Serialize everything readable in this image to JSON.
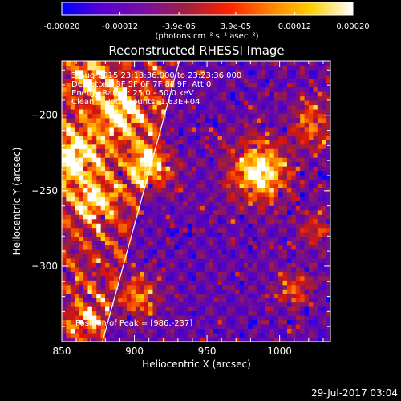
{
  "chart_data": {
    "type": "heatmap",
    "title": "Reconstructed RHESSI Image",
    "xlabel": "Heliocentric X (arcsec)",
    "ylabel": "Heliocentric Y (arcsec)",
    "xlim": [
      850,
      1035
    ],
    "ylim": [
      -350,
      -164
    ],
    "x_ticks": [
      850,
      900,
      950,
      1000
    ],
    "y_ticks": [
      -200,
      -250,
      -300
    ],
    "annotations": [
      "3-Aug-2015 23:13:36.000 to 23:23:36.000",
      "Detectors: 3F 5F 6F 7F 8F 9F, Att 0",
      "Energy Range: 25.0 - 50.0 keV",
      "Clean     Total counts: 1.63E+04"
    ],
    "peak_label": "Position of Peak = [986,-237]",
    "peak": [
      986,
      -237
    ],
    "colorbar": {
      "min": -0.0002,
      "max": 0.0002,
      "tick_values": [
        -0.0002,
        -0.00012,
        -3.9e-05,
        3.9e-05,
        0.00012,
        0.0002
      ],
      "tick_labels": [
        "-0.00020",
        "-0.00012",
        "-3.9e-05",
        "3.9e-05",
        "0.00012",
        "0.00020"
      ],
      "unit_label": "(photons cm⁻² s⁻¹ asec⁻²)",
      "colors": [
        "#0000ff",
        "#5a00d0",
        "#7a10a0",
        "#a02040",
        "#ff2000",
        "#ff8000",
        "#ffd000",
        "#ffffff"
      ]
    },
    "limb_line": {
      "from": [
        878,
        -350
      ],
      "to": [
        931,
        -164
      ]
    },
    "hotspots": [
      {
        "x": 986,
        "y": -237,
        "s": 14,
        "a": 1.6
      },
      {
        "x": 912,
        "y": -233,
        "s": 11,
        "a": 1.3
      },
      {
        "x": 890,
        "y": -197,
        "s": 11,
        "a": 1.1
      },
      {
        "x": 858,
        "y": -228,
        "s": 14,
        "a": 1.2
      },
      {
        "x": 872,
        "y": -258,
        "s": 9,
        "a": 1.0
      },
      {
        "x": 902,
        "y": -320,
        "s": 10,
        "a": 1.0
      },
      {
        "x": 1022,
        "y": -205,
        "s": 10,
        "a": 1.0
      },
      {
        "x": 1010,
        "y": -315,
        "s": 9,
        "a": 0.8
      },
      {
        "x": 1025,
        "y": -275,
        "s": 8,
        "a": 0.7
      },
      {
        "x": 870,
        "y": -175,
        "s": 9,
        "a": 0.9
      },
      {
        "x": 868,
        "y": -335,
        "s": 8,
        "a": 0.8
      }
    ]
  },
  "footer": {
    "timestamp": "29-Jul-2017 03:04"
  }
}
